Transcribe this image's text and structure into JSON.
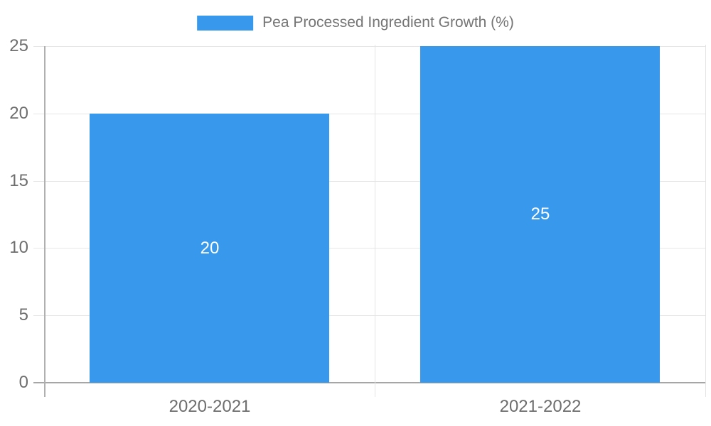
{
  "legend": {
    "label": "Pea Processed Ingredient Growth (%)"
  },
  "chart_data": {
    "type": "bar",
    "title": "",
    "xlabel": "",
    "ylabel": "",
    "categories": [
      "2020-2021",
      "2021-2022"
    ],
    "series": [
      {
        "name": "Pea Processed Ingredient Growth (%)",
        "values": [
          20,
          25
        ]
      }
    ],
    "bar_value_labels": [
      "20",
      "25"
    ],
    "ylim": [
      0,
      25
    ],
    "yticks": [
      0,
      5,
      10,
      15,
      20,
      25
    ],
    "ytick_labels": [
      "0",
      "5",
      "10",
      "15",
      "20",
      "25"
    ],
    "grid": true,
    "legend_position": "top",
    "colors": {
      "bar": "#3899EC",
      "bar_label": "#FFFFFF",
      "gridline": "#E6E6E6",
      "divider": "#E3E3E3",
      "baseline": "#A6A6A6",
      "axis_line": "#B0B0B0",
      "tick_label": "#6E6E6E",
      "legend_text": "#757575",
      "background": "#FFFFFF"
    }
  }
}
